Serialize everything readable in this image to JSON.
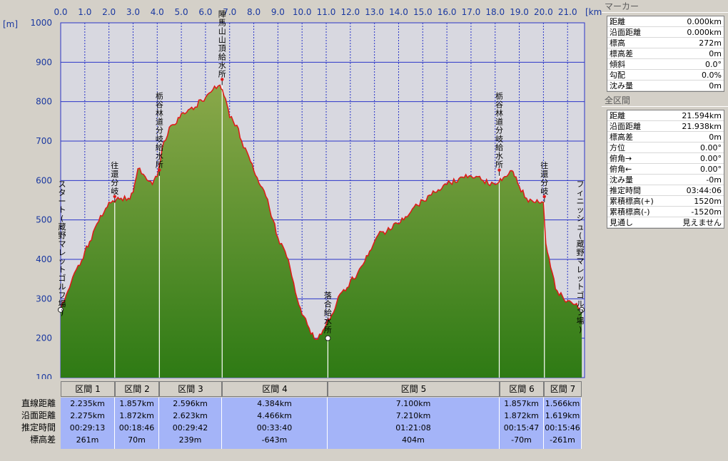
{
  "chart_data": {
    "type": "area",
    "x_unit": "[km]",
    "y_unit": "[m]",
    "xlim": [
      0,
      21.6
    ],
    "ylim": [
      100,
      1000
    ],
    "x_ticks": [
      "0.0",
      "1.0",
      "2.0",
      "3.0",
      "4.0",
      "5.0",
      "6.0",
      "7.0",
      "8.0",
      "9.0",
      "10.0",
      "11.0",
      "12.0",
      "13.0",
      "14.0",
      "15.0",
      "16.0",
      "17.0",
      "18.0",
      "19.0",
      "20.0",
      "21.0"
    ],
    "y_ticks": [
      "1000",
      "900",
      "800",
      "700",
      "600",
      "500",
      "400",
      "300",
      "200",
      "100"
    ],
    "grid": true,
    "series": [
      {
        "x": [
          0,
          0.3,
          0.5,
          0.8,
          1.0,
          1.2,
          1.5,
          1.8,
          2.0,
          2.24,
          2.5,
          2.8,
          3.0,
          3.2,
          3.5,
          3.8,
          4.0,
          4.2,
          4.5,
          4.8,
          5.0,
          5.5,
          5.8,
          6.0,
          6.3,
          6.6,
          6.7,
          6.9,
          7.0,
          7.3,
          7.5,
          7.8,
          8.0,
          8.5,
          8.8,
          9.0,
          9.3,
          9.5,
          9.8,
          10.0,
          10.3,
          10.5,
          10.8,
          11.0,
          11.3,
          11.5,
          11.8,
          12.0,
          12.3,
          12.6,
          13.0,
          13.3,
          13.5,
          13.8,
          14.0,
          14.5,
          15.0,
          15.5,
          16.0,
          16.5,
          17.0,
          17.5,
          18.0,
          18.15,
          18.4,
          18.7,
          18.8,
          19.0,
          19.3,
          19.6,
          19.8,
          20.0,
          20.1,
          20.3,
          20.5,
          20.8,
          21.0,
          21.3,
          21.59
        ],
        "y": [
          272,
          320,
          355,
          385,
          420,
          445,
          490,
          520,
          545,
          545,
          555,
          555,
          570,
          630,
          610,
          590,
          610,
          680,
          735,
          745,
          770,
          780,
          805,
          810,
          830,
          842,
          830,
          790,
          760,
          740,
          700,
          660,
          625,
          560,
          500,
          455,
          420,
          380,
          300,
          260,
          225,
          200,
          210,
          235,
          265,
          305,
          320,
          345,
          365,
          395,
          445,
          470,
          470,
          490,
          490,
          520,
          550,
          570,
          590,
          605,
          612,
          600,
          590,
          595,
          610,
          625,
          610,
          585,
          555,
          545,
          545,
          545,
          440,
          380,
          325,
          305,
          295,
          285,
          272
        ]
      }
    ],
    "waypoints": [
      {
        "x": 0.0,
        "y": 272,
        "label": "スタート(蔵野マレットゴルフ場)",
        "marker": "dot"
      },
      {
        "x": 2.24,
        "y": 545,
        "label": "往還分岐",
        "marker": "pin"
      },
      {
        "x": 4.09,
        "y": 612,
        "label": "栃谷林道分岐給水所",
        "marker": "pin"
      },
      {
        "x": 6.69,
        "y": 842,
        "label": "陣馬山山頂給水所",
        "marker": "pin"
      },
      {
        "x": 11.07,
        "y": 200,
        "label": "落合給水所",
        "marker": "dot"
      },
      {
        "x": 18.17,
        "y": 612,
        "label": "栃谷林道分岐給水所",
        "marker": "pin"
      },
      {
        "x": 20.04,
        "y": 545,
        "label": "往還分岐",
        "marker": "pin"
      },
      {
        "x": 21.59,
        "y": 272,
        "label": "フィニッシュ(蔵野マレットゴルフ場)",
        "marker": "dot"
      }
    ]
  },
  "segments": {
    "row_labels": [
      "直線距離",
      "沿面距離",
      "推定時間",
      "標高差"
    ],
    "items": [
      {
        "name": "区間 1",
        "straight": "2.235km",
        "surface": "2.275km",
        "time": "00:29:13",
        "elev": "261m"
      },
      {
        "name": "区間 2",
        "straight": "1.857km",
        "surface": "1.872km",
        "time": "00:18:46",
        "elev": "70m"
      },
      {
        "name": "区間 3",
        "straight": "2.596km",
        "surface": "2.623km",
        "time": "00:29:42",
        "elev": "239m"
      },
      {
        "name": "区間 4",
        "straight": "4.384km",
        "surface": "4.466km",
        "time": "00:33:40",
        "elev": "-643m"
      },
      {
        "name": "区間 5",
        "straight": "7.100km",
        "surface": "7.210km",
        "time": "01:21:08",
        "elev": "404m"
      },
      {
        "name": "区間 6",
        "straight": "1.857km",
        "surface": "1.872km",
        "time": "00:15:47",
        "elev": "-70m"
      },
      {
        "name": "区間 7",
        "straight": "1.566km",
        "surface": "1.619km",
        "time": "00:15:46",
        "elev": "-261m"
      }
    ]
  },
  "marker_panel": {
    "title": "マーカー",
    "rows": [
      {
        "label": "距離",
        "value": "0.000km"
      },
      {
        "label": "沿面距離",
        "value": "0.000km"
      },
      {
        "label": "標高",
        "value": "272m"
      },
      {
        "label": "標高差",
        "value": "0m"
      },
      {
        "label": "傾斜",
        "value": "0.0°"
      },
      {
        "label": "勾配",
        "value": "0.0%"
      },
      {
        "label": "沈み量",
        "value": "0m"
      }
    ]
  },
  "total_panel": {
    "title": "全区間",
    "rows": [
      {
        "label": "距離",
        "value": "21.594km"
      },
      {
        "label": "沿面距離",
        "value": "21.938km"
      },
      {
        "label": "標高差",
        "value": "0m"
      },
      {
        "label": "方位",
        "value": "0.00°"
      },
      {
        "label": "俯角→",
        "value": "0.00°"
      },
      {
        "label": "俯角←",
        "value": "0.00°"
      },
      {
        "label": "沈み量",
        "value": "-0m"
      },
      {
        "label": "推定時間",
        "value": "03:44:06"
      },
      {
        "label": "累積標高(+)",
        "value": "1520m"
      },
      {
        "label": "累積標高(-)",
        "value": "-1520m"
      },
      {
        "label": "見通し",
        "value": "見えません"
      }
    ]
  },
  "colors": {
    "plot_bg": "#d8d8e0",
    "grid": "#2a35c8",
    "profile_line": "#e01818",
    "fill_top": "#8aa84a",
    "fill_bottom": "#2e7a14",
    "axis_text": "#1a38a0",
    "table_cell": "#a4b4f8"
  }
}
